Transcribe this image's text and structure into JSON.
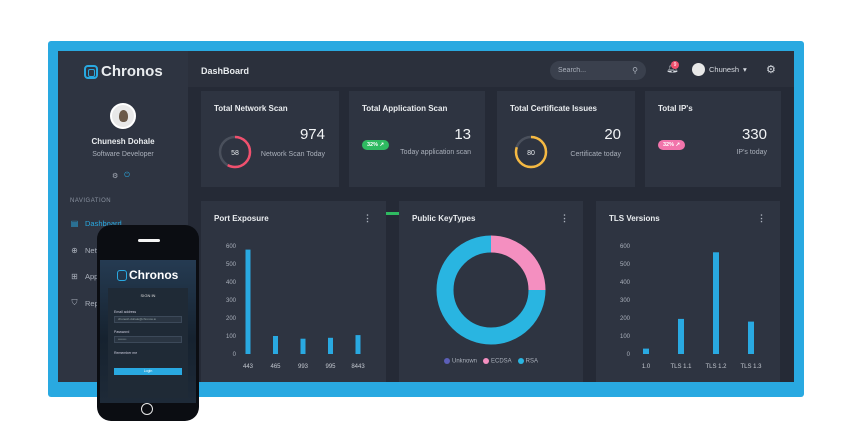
{
  "app": {
    "name": "Chronos",
    "brand_color": "#29a9e1"
  },
  "user": {
    "name": "Chunesh Dohale",
    "role": "Software Developer"
  },
  "nav": {
    "heading": "NAVIGATION",
    "items": [
      {
        "label": "Dashboard",
        "icon": "dashboard-icon",
        "active": true
      },
      {
        "label": "Network",
        "icon": "globe-icon",
        "active": false
      },
      {
        "label": "Applications",
        "icon": "grid-icon",
        "active": false
      },
      {
        "label": "Reports",
        "icon": "shield-icon",
        "active": false
      }
    ]
  },
  "topbar": {
    "title": "DashBoard",
    "search_placeholder": "Search...",
    "notifications": "9",
    "user_label": "Chunesh"
  },
  "stats": [
    {
      "title": "Total Network Scan",
      "value": "974",
      "sub": "Network Scan Today",
      "ring": "58",
      "ring_pct": 58,
      "color": "#f0506e"
    },
    {
      "title": "Total Application Scan",
      "value": "13",
      "sub": "Today application scan",
      "pill": "32% ↗",
      "color": "#2fba61",
      "bar_pct": 75
    },
    {
      "title": "Total Certificate Issues",
      "value": "20",
      "sub": "Certificate today",
      "ring": "80",
      "ring_pct": 80,
      "color": "#f5b942"
    },
    {
      "title": "Total IP's",
      "value": "330",
      "sub": "IP's today",
      "pill": "32% ↗",
      "color": "#f274ab",
      "bar_pct": 78
    }
  ],
  "panels": {
    "port_title": "Port Exposure",
    "key_title": "Public KeyTypes",
    "tls_title": "TLS Versions",
    "menu_glyph": "⋮"
  },
  "chart_data": [
    {
      "type": "bar",
      "title": "Port Exposure",
      "categories": [
        "443",
        "465",
        "993",
        "995",
        "8443"
      ],
      "values": [
        580,
        100,
        85,
        90,
        105
      ],
      "ylim": [
        0,
        600
      ],
      "yticks": [
        "600",
        "500",
        "400",
        "300",
        "200",
        "100",
        "0"
      ],
      "color": "#29a9e1"
    },
    {
      "type": "pie",
      "title": "Public KeyTypes",
      "categories": [
        "Unknown",
        "ECDSA",
        "RSA"
      ],
      "values": [
        0,
        25,
        75
      ],
      "colors": [
        "#5c5fb8",
        "#f48fc0",
        "#29b5e1"
      ]
    },
    {
      "type": "bar",
      "title": "TLS Versions",
      "categories": [
        "1.0",
        "TLS 1.1",
        "TLS 1.2",
        "TLS 1.3"
      ],
      "values": [
        30,
        195,
        565,
        180
      ],
      "ylim": [
        0,
        600
      ],
      "yticks": [
        "600",
        "500",
        "400",
        "300",
        "200",
        "100",
        "0"
      ],
      "color": "#29a9e1"
    }
  ],
  "phone": {
    "app_name": "Chronos",
    "form_title": "SIGN IN",
    "email_label": "Email address",
    "email_value": "chunesh.dohale@chronos.io",
    "password_label": "Password",
    "password_value": "••••••••",
    "remember_label": "Remember me",
    "login_label": "Login"
  }
}
